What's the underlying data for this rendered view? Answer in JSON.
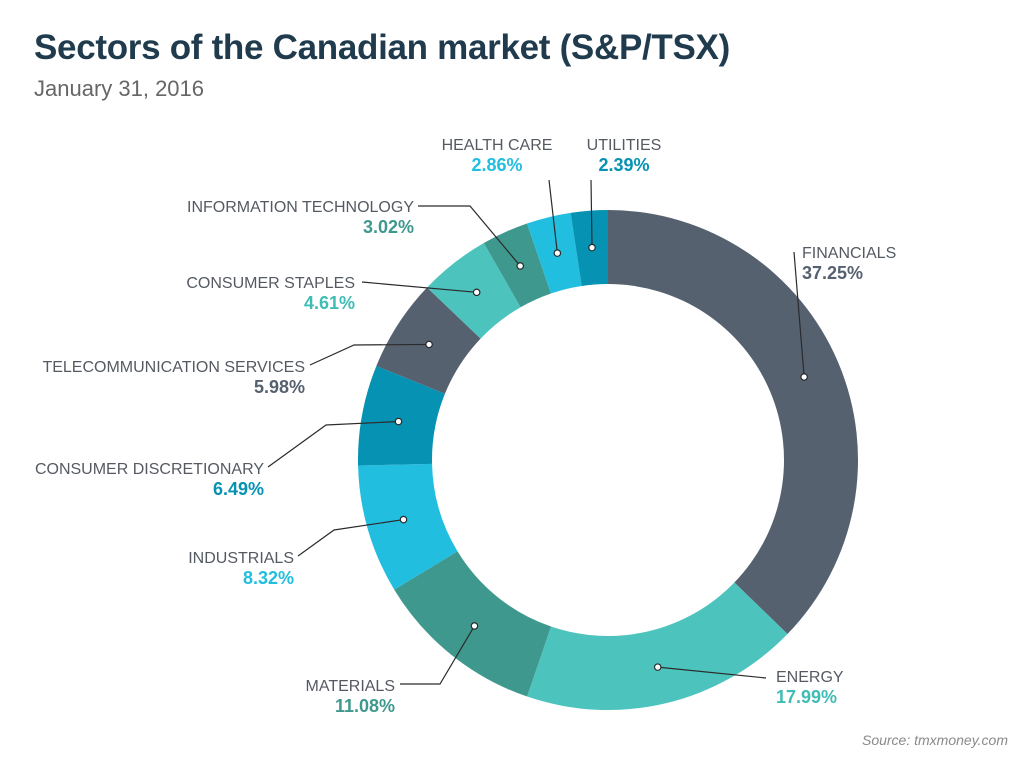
{
  "title": "Sectors of the Canadian market (S&P/TSX)",
  "subtitle": "January 31, 2016",
  "source": "Source: tmxmoney.com",
  "chart_data": {
    "type": "pie",
    "variant": "donut",
    "title": "Sectors of the Canadian market (S&P/TSX)",
    "subtitle": "January 31, 2016",
    "unit": "%",
    "slices": [
      {
        "label": "FINANCIALS",
        "value": 37.25,
        "display": "37.25%",
        "color": "#566170",
        "label_color": "#566170"
      },
      {
        "label": "ENERGY",
        "value": 17.99,
        "display": "17.99%",
        "color": "#4cc3bd",
        "label_color": "#3fbcb6"
      },
      {
        "label": "MATERIALS",
        "value": 11.08,
        "display": "11.08%",
        "color": "#3e988e",
        "label_color": "#3e988e"
      },
      {
        "label": "INDUSTRIALS",
        "value": 8.32,
        "display": "8.32%",
        "color": "#22bedf",
        "label_color": "#22bedf"
      },
      {
        "label": "CONSUMER DISCRETIONARY",
        "value": 6.49,
        "display": "6.49%",
        "color": "#0692b3",
        "label_color": "#0692b3"
      },
      {
        "label": "TELECOMMUNICATION SERVICES",
        "value": 5.98,
        "display": "5.98%",
        "color": "#566170",
        "label_color": "#566170"
      },
      {
        "label": "CONSUMER STAPLES",
        "value": 4.61,
        "display": "4.61%",
        "color": "#4cc3bd",
        "label_color": "#3fbcb6"
      },
      {
        "label": "INFORMATION TECHNOLOGY",
        "value": 3.02,
        "display": "3.02%",
        "color": "#3e988e",
        "label_color": "#3e988e"
      },
      {
        "label": "HEALTH CARE",
        "value": 2.86,
        "display": "2.86%",
        "color": "#22bedf",
        "label_color": "#22bedf"
      },
      {
        "label": "UTILITIES",
        "value": 2.39,
        "display": "2.39%",
        "color": "#0692b3",
        "label_color": "#0692b3"
      }
    ]
  }
}
